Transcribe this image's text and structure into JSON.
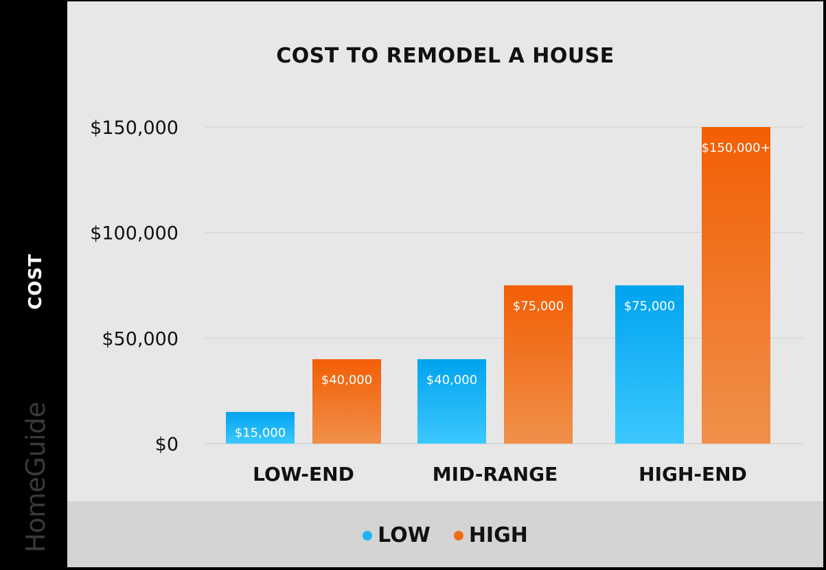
{
  "chart_data": {
    "type": "bar",
    "title": "COST TO REMODEL A HOUSE",
    "ylabel": "COST",
    "xlabel": "",
    "categories": [
      "LOW-END",
      "MID-RANGE",
      "HIGH-END"
    ],
    "series": [
      {
        "name": "LOW",
        "values": [
          15000,
          40000,
          75000
        ],
        "labels": [
          "$15,000",
          "$40,000",
          "$75,000"
        ],
        "color": "#1fb4f5"
      },
      {
        "name": "HIGH",
        "values": [
          40000,
          75000,
          150000
        ],
        "labels": [
          "$40,000",
          "$75,000",
          "$150,000+"
        ],
        "color": "#f26b13"
      }
    ],
    "ylim": [
      0,
      150000
    ],
    "yticks": [
      0,
      50000,
      100000,
      150000
    ],
    "ytick_labels": [
      "$0",
      "$50,000",
      "$100,000",
      "$150,000"
    ],
    "grid": true,
    "legend_position": "bottom"
  },
  "brand": "HomeGuide",
  "colors": {
    "panel_background": "#e7e7e7",
    "legend_band": "#d4d4d4",
    "frame": "#000000"
  }
}
